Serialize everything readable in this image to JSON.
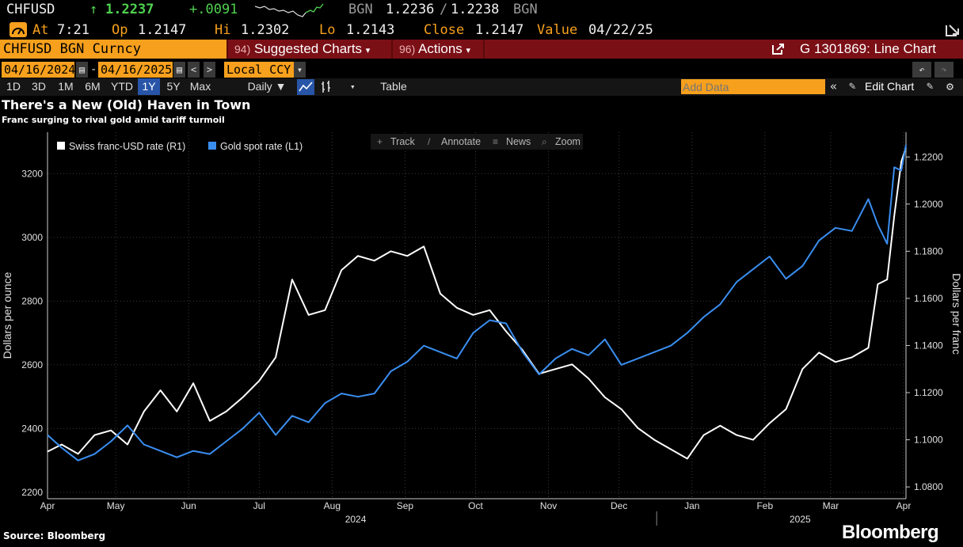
{
  "ticker_bar": {
    "symbol": "CHFUSD",
    "arrow": "↑",
    "last": "1.2237",
    "change": "+.0091",
    "source": "BGN",
    "bid": "1.2236",
    "sep": "/",
    "ask": "1.2238",
    "source2": "BGN"
  },
  "quote_bar": {
    "at_label": "At",
    "at_value": "7:21",
    "op_label": "Op",
    "op_value": "1.2147",
    "hi_label": "Hi",
    "hi_value": "1.2302",
    "lo_label": "Lo",
    "lo_value": "1.2143",
    "close_label": "Close",
    "close_value": "1.2147",
    "value_label": "Value",
    "value_date": "04/22/25"
  },
  "function_bar": {
    "security": "CHFUSD BGN Curncy",
    "suggested_num": "94)",
    "suggested_label": "Suggested Charts",
    "actions_num": "96)",
    "actions_label": "Actions",
    "chart_id": "G 1301869: Line Chart"
  },
  "controls": {
    "start_date": "04/16/2024",
    "dash": "-",
    "end_date": "04/16/2025",
    "currency": "Local CCY",
    "periods": [
      "1D",
      "3D",
      "1M",
      "6M",
      "YTD",
      "1Y",
      "5Y",
      "Max"
    ],
    "active_period": "1Y",
    "frequency": "Daily ▼",
    "table_label": "Table",
    "add_data_placeholder": "Add Data",
    "edit_chart_label": "Edit Chart"
  },
  "tools": {
    "track": "Track",
    "annotate": "Annotate",
    "news": "News",
    "zoom": "Zoom"
  },
  "footer": {
    "source": "Source: Bloomberg",
    "brand": "Bloomberg"
  },
  "colors": {
    "amber": "#f7a01d",
    "up": "#4fd14f",
    "gold_series": "#3a8ef0",
    "franc_series": "#ffffff",
    "bar_red": "#7b0f16"
  },
  "icons": [
    "gauge-icon",
    "launch-icon",
    "undo-icon",
    "redo-icon",
    "line-chart-icon",
    "bar-chart-icon",
    "collapse-icon",
    "wrench-icon",
    "settings-icon",
    "track-icon",
    "annotate-icon",
    "news-icon",
    "zoom-icon"
  ],
  "chart_data": {
    "type": "line",
    "title": "There's a New (Old) Haven in Town",
    "subtitle": "Franc surging to rival gold amid tariff turmoil",
    "xlabel": "",
    "left_axis_label": "Dollars per ounce",
    "right_axis_label": "Dollars per franc",
    "left_ylim": [
      2180,
      3330
    ],
    "right_ylim": [
      1.075,
      1.2305
    ],
    "left_ticks": [
      2200,
      2400,
      2600,
      2800,
      3000,
      3200
    ],
    "right_ticks": [
      "1.0800",
      "1.1000",
      "1.1200",
      "1.1400",
      "1.1600",
      "1.1800",
      "1.2000",
      "1.2200"
    ],
    "x_range": [
      "2024-04-16",
      "2025-04-16"
    ],
    "month_ticks": [
      {
        "label": "Apr",
        "date": "2024-04-16"
      },
      {
        "label": "May",
        "date": "2024-05-15"
      },
      {
        "label": "Jun",
        "date": "2024-06-15"
      },
      {
        "label": "Jul",
        "date": "2024-07-15"
      },
      {
        "label": "Aug",
        "date": "2024-08-15"
      },
      {
        "label": "Sep",
        "date": "2024-09-15"
      },
      {
        "label": "Oct",
        "date": "2024-10-15"
      },
      {
        "label": "Nov",
        "date": "2024-11-15"
      },
      {
        "label": "Dec",
        "date": "2024-12-15"
      },
      {
        "label": "Jan",
        "date": "2025-01-15"
      },
      {
        "label": "Feb",
        "date": "2025-02-15"
      },
      {
        "label": "Mar",
        "date": "2025-03-15"
      },
      {
        "label": "Apr",
        "date": "2025-04-15"
      }
    ],
    "year_labels": [
      {
        "label": "2024",
        "date": "2024-08-25"
      },
      {
        "label": "2025",
        "date": "2025-03-02"
      }
    ],
    "grid": true,
    "legend_position": "top-left",
    "series": [
      {
        "name": "Swiss franc-USD rate (R1)",
        "axis": "right",
        "color": "#ffffff",
        "x": [
          "2024-04-16",
          "2024-04-22",
          "2024-04-29",
          "2024-05-06",
          "2024-05-13",
          "2024-05-20",
          "2024-05-27",
          "2024-06-03",
          "2024-06-10",
          "2024-06-17",
          "2024-06-24",
          "2024-07-01",
          "2024-07-08",
          "2024-07-15",
          "2024-07-22",
          "2024-07-29",
          "2024-08-05",
          "2024-08-12",
          "2024-08-19",
          "2024-08-26",
          "2024-09-02",
          "2024-09-09",
          "2024-09-16",
          "2024-09-23",
          "2024-09-30",
          "2024-10-07",
          "2024-10-14",
          "2024-10-21",
          "2024-10-28",
          "2024-11-04",
          "2024-11-11",
          "2024-11-18",
          "2024-11-25",
          "2024-12-02",
          "2024-12-09",
          "2024-12-16",
          "2024-12-23",
          "2024-12-30",
          "2025-01-06",
          "2025-01-13",
          "2025-01-20",
          "2025-01-27",
          "2025-02-03",
          "2025-02-10",
          "2025-02-17",
          "2025-02-24",
          "2025-03-03",
          "2025-03-10",
          "2025-03-17",
          "2025-03-24",
          "2025-03-31",
          "2025-04-04",
          "2025-04-08",
          "2025-04-11",
          "2025-04-14",
          "2025-04-16"
        ],
        "values": [
          1.095,
          1.098,
          1.094,
          1.102,
          1.104,
          1.098,
          1.112,
          1.121,
          1.112,
          1.124,
          1.108,
          1.112,
          1.118,
          1.125,
          1.135,
          1.168,
          1.153,
          1.155,
          1.172,
          1.178,
          1.176,
          1.18,
          1.178,
          1.182,
          1.162,
          1.156,
          1.153,
          1.155,
          1.146,
          1.138,
          1.128,
          1.13,
          1.132,
          1.126,
          1.118,
          1.113,
          1.105,
          1.1,
          1.096,
          1.092,
          1.102,
          1.106,
          1.102,
          1.1,
          1.107,
          1.113,
          1.13,
          1.137,
          1.133,
          1.135,
          1.139,
          1.166,
          1.168,
          1.195,
          1.218,
          1.224
        ]
      },
      {
        "name": "Gold spot rate (L1)",
        "axis": "left",
        "color": "#3a8ef0",
        "x": [
          "2024-04-16",
          "2024-04-22",
          "2024-04-29",
          "2024-05-06",
          "2024-05-13",
          "2024-05-20",
          "2024-05-27",
          "2024-06-03",
          "2024-06-10",
          "2024-06-17",
          "2024-06-24",
          "2024-07-01",
          "2024-07-08",
          "2024-07-15",
          "2024-07-22",
          "2024-07-29",
          "2024-08-05",
          "2024-08-12",
          "2024-08-19",
          "2024-08-26",
          "2024-09-02",
          "2024-09-09",
          "2024-09-16",
          "2024-09-23",
          "2024-09-30",
          "2024-10-07",
          "2024-10-14",
          "2024-10-21",
          "2024-10-28",
          "2024-11-04",
          "2024-11-11",
          "2024-11-18",
          "2024-11-25",
          "2024-12-02",
          "2024-12-09",
          "2024-12-16",
          "2024-12-23",
          "2024-12-30",
          "2025-01-06",
          "2025-01-13",
          "2025-01-20",
          "2025-01-27",
          "2025-02-03",
          "2025-02-10",
          "2025-02-17",
          "2025-02-24",
          "2025-03-03",
          "2025-03-10",
          "2025-03-17",
          "2025-03-24",
          "2025-03-31",
          "2025-04-04",
          "2025-04-08",
          "2025-04-11",
          "2025-04-14",
          "2025-04-16"
        ],
        "values": [
          2380,
          2340,
          2300,
          2320,
          2360,
          2410,
          2350,
          2330,
          2310,
          2330,
          2320,
          2360,
          2400,
          2450,
          2380,
          2440,
          2420,
          2480,
          2510,
          2500,
          2510,
          2580,
          2610,
          2660,
          2640,
          2620,
          2700,
          2740,
          2730,
          2640,
          2570,
          2620,
          2650,
          2630,
          2680,
          2600,
          2620,
          2640,
          2660,
          2700,
          2750,
          2790,
          2860,
          2900,
          2940,
          2870,
          2910,
          2990,
          3030,
          3020,
          3120,
          3040,
          2980,
          3220,
          3210,
          3290
        ]
      }
    ]
  }
}
